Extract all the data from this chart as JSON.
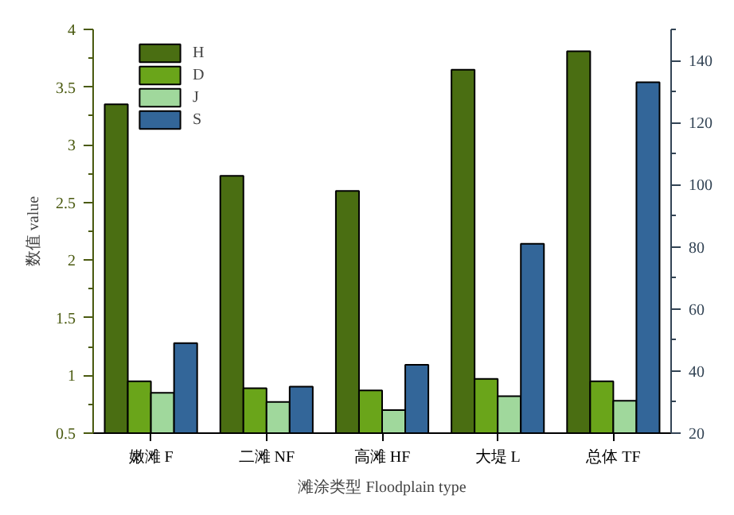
{
  "chart_data": {
    "type": "bar",
    "xlabel": "滩涂类型 Floodplain type",
    "ylabel": "数值 value",
    "categories": [
      "嫩滩 F",
      "二滩 NF",
      "高滩 HF",
      "大堤 L",
      "总体 TF"
    ],
    "series": [
      {
        "name": "H",
        "color": "#4a6e12",
        "values": [
          3.35,
          2.73,
          2.6,
          3.65,
          3.81
        ]
      },
      {
        "name": "D",
        "color": "#6aa51a",
        "values": [
          0.95,
          0.89,
          0.87,
          0.97,
          0.95
        ]
      },
      {
        "name": "J",
        "color": "#a0d89c",
        "values": [
          0.85,
          0.77,
          0.7,
          0.82,
          0.78
        ]
      },
      {
        "name": "S",
        "color": "#336699",
        "axis": "y2",
        "values": [
          49,
          35,
          42,
          81,
          133
        ]
      }
    ],
    "ylim": [
      0.5,
      4.0
    ],
    "yticks": [
      0.5,
      {
        "value": 0.75,
        "label": null
      },
      1.0,
      {
        "value": 1.25,
        "label": null
      },
      1.5,
      {
        "value": 1.75,
        "label": null
      },
      2.0,
      {
        "value": 2.25,
        "label": null
      },
      2.5,
      {
        "value": 2.75,
        "label": null
      },
      3.0,
      {
        "value": 3.25,
        "label": null
      },
      3.5,
      {
        "value": 3.75,
        "label": null
      },
      4.0
    ],
    "y2lim": [
      20,
      150
    ],
    "y2ticks": [
      20,
      {
        "value": 30,
        "label": null
      },
      40,
      {
        "value": 50,
        "label": null
      },
      60,
      {
        "value": 70,
        "label": null
      },
      80,
      {
        "value": 90,
        "label": null
      },
      100,
      {
        "value": 110,
        "label": null
      },
      120,
      {
        "value": 130,
        "label": null
      },
      140,
      {
        "value": 150,
        "label": null
      }
    ],
    "legend": "top left",
    "grid": false
  }
}
